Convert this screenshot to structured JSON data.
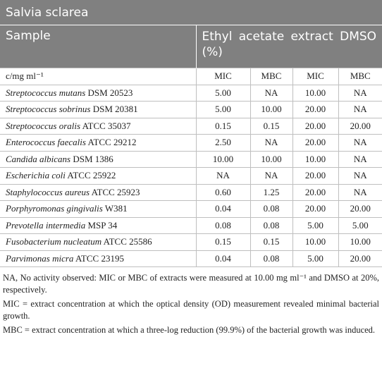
{
  "title": "Salvia sclarea",
  "header": {
    "sample": "Sample",
    "extract": "Ethyl acetate extract DMSO (%)"
  },
  "subheader": [
    "c/mg ml⁻¹",
    "MIC",
    "MBC",
    "MIC",
    "MBC"
  ],
  "rows": [
    {
      "species": "Streptococcus mutans",
      "strain": "DSM 20523",
      "values": [
        "5.00",
        "NA",
        "10.00",
        "NA"
      ]
    },
    {
      "species": "Streptococcus sobrinus",
      "strain": "DSM 20381",
      "values": [
        "5.00",
        "10.00",
        "20.00",
        "NA"
      ]
    },
    {
      "species": "Streptococcus oralis",
      "strain": "ATCC 35037",
      "values": [
        "0.15",
        "0.15",
        "20.00",
        "20.00"
      ]
    },
    {
      "species": "Enterococcus faecalis",
      "strain": "ATCC 29212",
      "values": [
        "2.50",
        "NA",
        "20.00",
        "NA"
      ]
    },
    {
      "species": "Candida albicans",
      "strain": "DSM 1386",
      "values": [
        "10.00",
        "10.00",
        "10.00",
        "NA"
      ]
    },
    {
      "species": "Escherichia coli",
      "strain": "ATCC 25922",
      "values": [
        "NA",
        "NA",
        "20.00",
        "NA"
      ]
    },
    {
      "species": "Staphylococcus aureus",
      "strain": "ATCC 25923",
      "values": [
        "0.60",
        "1.25",
        "20.00",
        "NA"
      ]
    },
    {
      "species": "Porphyromonas gingivalis",
      "strain": "W381",
      "values": [
        "0.04",
        "0.08",
        "20.00",
        "20.00"
      ]
    },
    {
      "species": "Prevotella intermedia",
      "strain": "MSP 34",
      "values": [
        "0.08",
        "0.08",
        "5.00",
        "5.00"
      ]
    },
    {
      "species": "Fusobacterium nucleatum",
      "strain": "ATCC 25586",
      "values": [
        "0.15",
        "0.15",
        "10.00",
        "10.00"
      ]
    },
    {
      "species": "Parvimonas micra",
      "strain": "ATCC 23195",
      "values": [
        "0.04",
        "0.08",
        "5.00",
        "20.00"
      ]
    }
  ],
  "footnotes": [
    "NA, No activity observed: MIC or MBC of extracts were measured at 10.00 mg ml⁻¹ and DMSO at 20%, respectively.",
    "MIC = extract concentration at which the optical density (OD) measurement revealed minimal bacterial growth.",
    "MBC = extract concentration at which a three-log reduction (99.9%) of the bacterial growth was induced."
  ]
}
